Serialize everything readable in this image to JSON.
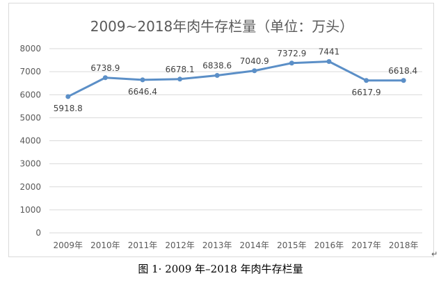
{
  "chart_data": {
    "type": "line",
    "title": "2009~2018年肉牛存栏量（单位：万头）",
    "categories": [
      "2009年",
      "2010年",
      "2011年",
      "2012年",
      "2013年",
      "2014年",
      "2015年",
      "2016年",
      "2017年",
      "2018年"
    ],
    "series": [
      {
        "values": [
          5918.8,
          6738.9,
          6646.4,
          6678.1,
          6838.6,
          7040.9,
          7372.9,
          7441,
          6617.9,
          6618.4
        ]
      }
    ],
    "value_labels": [
      "5918.8",
      "6738.9",
      "6646.4",
      "6678.1",
      "6838.6",
      "7040.9",
      "7372.9",
      "7441",
      "6617.9",
      "6618.4"
    ],
    "ylim": [
      0,
      8000
    ],
    "yticks": [
      0,
      1000,
      2000,
      3000,
      4000,
      5000,
      6000,
      7000,
      8000
    ],
    "grid": true,
    "legend": "none",
    "colors": {
      "line": "#5b8fc7",
      "marker": "#5b8fc7",
      "grid": "#d9d9d9"
    }
  },
  "caption": "图 1· 2009 年–2018 年肉牛存栏量",
  "paragraph_mark": "↵"
}
